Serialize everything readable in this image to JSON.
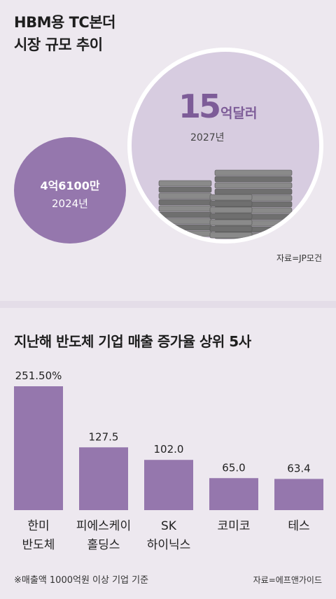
{
  "top": {
    "title_lines": [
      "HBM용 TC본더",
      "시장 규모 추이"
    ],
    "circle_2024": {
      "value": "4억6100만",
      "year": "2024년"
    },
    "circle_2027": {
      "number": "15",
      "unit": "억달러",
      "year": "2027년"
    },
    "source": "자료=JP모건"
  },
  "bottom": {
    "title": "지난해 반도체 기업 매출 증가율 상위 5사",
    "footnote": "※매출액 1000억원 이상 기업 기준",
    "source": "자료=에프앤가이드"
  },
  "colors": {
    "bar": "#9577ad",
    "circle_big": "#d7cce0",
    "circle_small": "#9577ad",
    "accent_text": "#7d5c98"
  },
  "chart_data": {
    "type": "bar",
    "title": "지난해 반도체 기업 매출 증가율 상위 5사",
    "categories": [
      "한미\n반도체",
      "피에스케이\n홀딩스",
      "SK\n하이닉스",
      "코미코",
      "테스"
    ],
    "values": [
      251.5,
      127.5,
      102.0,
      65.0,
      63.4
    ],
    "value_labels": [
      "251.50%",
      "127.5",
      "102.0",
      "65.0",
      "63.4"
    ],
    "ylim": [
      0,
      251.5
    ],
    "grid": false,
    "legend": "none"
  }
}
